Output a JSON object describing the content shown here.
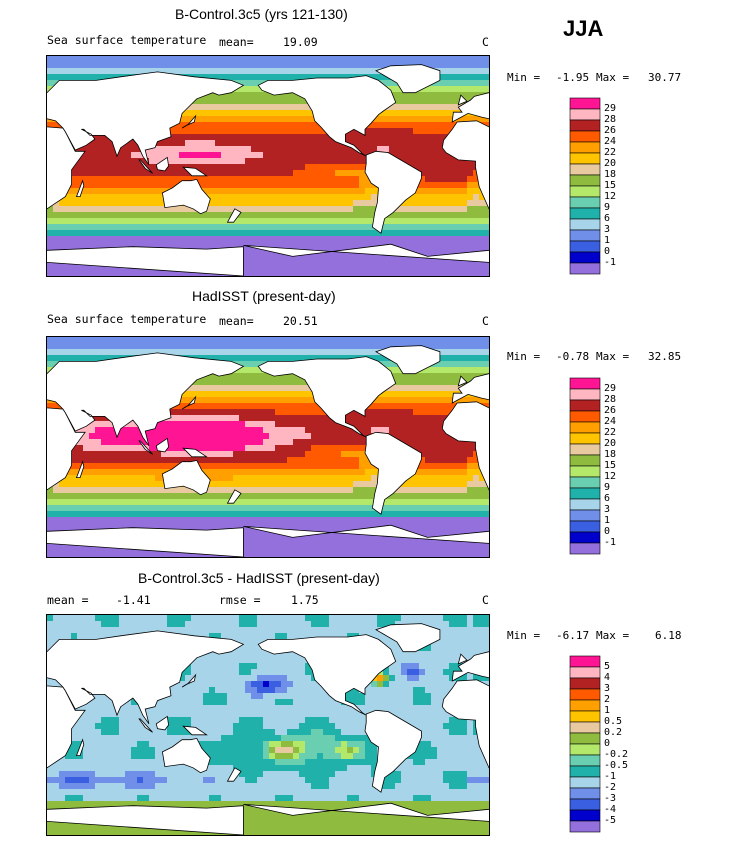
{
  "season": "JJA",
  "colors": {
    "sst": [
      "#9370db",
      "#0000cd",
      "#3a5fe0",
      "#6f8fe8",
      "#a8d4ea",
      "#20b2aa",
      "#6acfb0",
      "#b3e86b",
      "#8fbc3f",
      "#e8c9a0",
      "#ffc400",
      "#ff9f00",
      "#ff5a00",
      "#b22222",
      "#ffb6c1",
      "#ff1493"
    ],
    "diff": [
      "#9370db",
      "#0000cd",
      "#3a5fe0",
      "#6f8fe8",
      "#a8d4ea",
      "#20b2aa",
      "#6acfb0",
      "#b3e86b",
      "#8fbc3f",
      "#e8c9a0",
      "#ffc400",
      "#ff9f00",
      "#ff5a00",
      "#b22222",
      "#ffb6c1",
      "#ff1493"
    ],
    "land": "#ffffff",
    "coast": "#000000"
  },
  "chart_data": [
    {
      "type": "heatmap",
      "title": "B-Control.3c5 (yrs 121-130)",
      "subtitle": "Sea surface temperature",
      "stat_label": "mean=",
      "stat_value": "19.09",
      "units": "C",
      "min_label": "Min =",
      "min": "-1.95",
      "max_label": "Max =",
      "max": "30.77",
      "field": "model",
      "levels": [
        "29",
        "28",
        "26",
        "24",
        "22",
        "20",
        "18",
        "15",
        "12",
        "9",
        "6",
        "3",
        "1",
        "0",
        "-1"
      ]
    },
    {
      "type": "heatmap",
      "title": "HadISST (present-day)",
      "subtitle": "Sea surface temperature",
      "stat_label": "mean=",
      "stat_value": "20.51",
      "units": "C",
      "min_label": "Min =",
      "min": "-0.78",
      "max_label": "Max =",
      "max": "32.85",
      "field": "obs",
      "levels": [
        "29",
        "28",
        "26",
        "24",
        "22",
        "20",
        "18",
        "15",
        "12",
        "9",
        "6",
        "3",
        "1",
        "0",
        "-1"
      ]
    },
    {
      "type": "heatmap",
      "title": "B-Control.3c5 - HadISST (present-day)",
      "mean_label": "mean =",
      "mean_value": "-1.41",
      "rmse_label": "rmse =",
      "rmse_value": "1.75",
      "units": "C",
      "min_label": "Min =",
      "min": "-6.17",
      "max_label": "Max =",
      "max": "6.18",
      "field": "diff",
      "levels": [
        "5",
        "4",
        "3",
        "2",
        "1",
        "0.5",
        "0.2",
        "0",
        "-0.2",
        "-0.5",
        "-1",
        "-2",
        "-3",
        "-4",
        "-5"
      ]
    }
  ]
}
